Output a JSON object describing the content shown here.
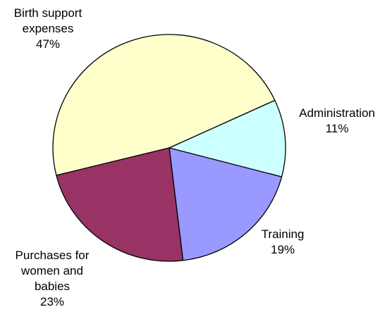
{
  "chart_data": {
    "type": "pie",
    "title": "",
    "series": [
      {
        "values": [
          47,
          11,
          19,
          23
        ],
        "labels": [
          "Birth support expenses",
          "Administration",
          "Training",
          "Purchases for women and babies"
        ],
        "percent_labels": [
          "47%",
          "11%",
          "19%",
          "23%"
        ]
      }
    ],
    "categories": [
      "Birth support expenses",
      "Administration",
      "Training",
      "Purchases for women and babies"
    ],
    "colors": [
      "#FFFFCC",
      "#CCFFFF",
      "#9999FF",
      "#993366"
    ],
    "label_lines": [
      [
        "Birth support",
        "expenses",
        "47%"
      ],
      [
        "Administration",
        "11%"
      ],
      [
        "Training",
        "19%"
      ],
      [
        "Purchases for",
        "women and",
        "babies",
        "23%"
      ]
    ],
    "legend": "none",
    "border_color": "#000000"
  }
}
